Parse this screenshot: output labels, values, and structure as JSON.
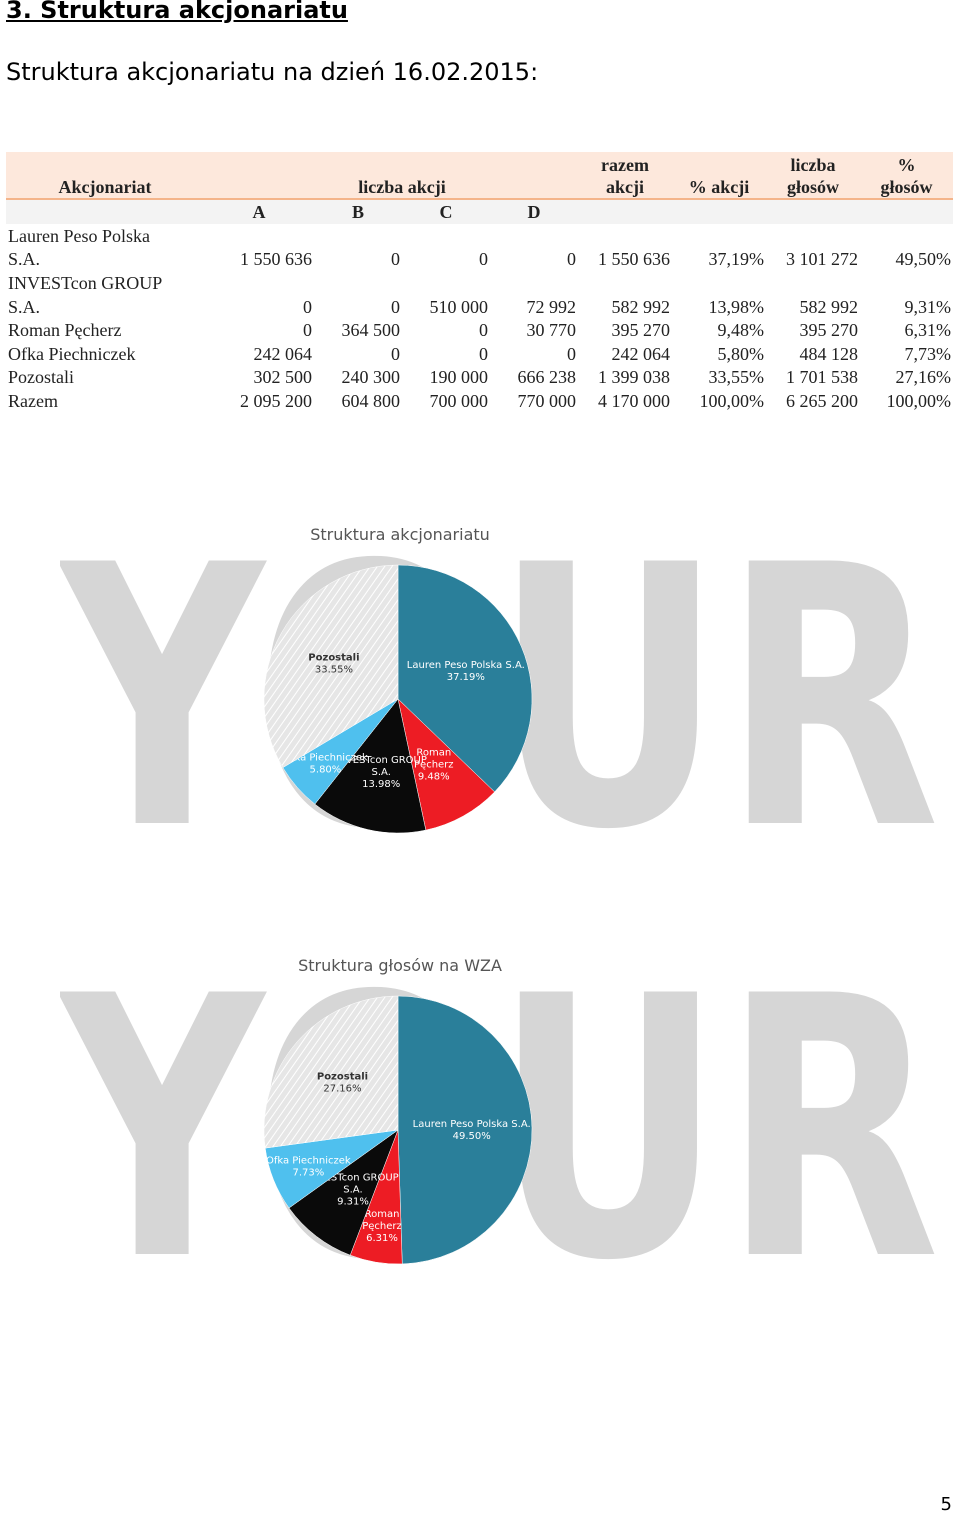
{
  "document": {
    "heading": "3. Struktura akcjonariatu",
    "subheading": "Struktura akcjonariatu na dzień 16.02.2015:",
    "page_number": "5"
  },
  "table": {
    "header": {
      "akcjonariat": "Akcjonariat",
      "liczba_akcji": "liczba akcji",
      "razem_line1": "razem",
      "razem_line2": "akcji",
      "proc_akcji": "% akcji",
      "liczba_glosow_line1": "liczba",
      "liczba_glosow_line2": "głosów",
      "proc_glosow_line1": "%",
      "proc_glosow_line2": "głosów",
      "a": "A",
      "b": "B",
      "c": "C",
      "d": "D"
    },
    "rows": [
      {
        "name1": "Lauren Peso Polska",
        "name2": "S.A.",
        "a": "1 550 636",
        "b": "0",
        "c": "0",
        "d": "0",
        "razem": "1 550 636",
        "proc_akcji": "37,19%",
        "liczba_glosow": "3 101 272",
        "proc_glosow": "49,50%"
      },
      {
        "name1": "INVESTcon GROUP",
        "name2": "S.A.",
        "a": "0",
        "b": "0",
        "c": "510 000",
        "d": "72 992",
        "razem": "582 992",
        "proc_akcji": "13,98%",
        "liczba_glosow": "582 992",
        "proc_glosow": "9,31%"
      },
      {
        "name": "Roman Pęcherz",
        "a": "0",
        "b": "364 500",
        "c": "0",
        "d": "30 770",
        "razem": "395 270",
        "proc_akcji": "9,48%",
        "liczba_glosow": "395 270",
        "proc_glosow": "6,31%"
      },
      {
        "name": "Ofka Piechniczek",
        "a": "242 064",
        "b": "0",
        "c": "0",
        "d": "0",
        "razem": "242 064",
        "proc_akcji": "5,80%",
        "liczba_glosow": "484 128",
        "proc_glosow": "7,73%"
      },
      {
        "name": "Pozostali",
        "a": "302 500",
        "b": "240 300",
        "c": "190 000",
        "d": "666 238",
        "razem": "1 399 038",
        "proc_akcji": "33,55%",
        "liczba_glosow": "1 701 538",
        "proc_glosow": "27,16%"
      },
      {
        "name": "Razem",
        "a": "2 095 200",
        "b": "604 800",
        "c": "700 000",
        "d": "770 000",
        "razem": "4 170 000",
        "proc_akcji": "100,00%",
        "liczba_glosow": "6 265 200",
        "proc_glosow": "100,00%"
      }
    ]
  },
  "watermark": "YOUR",
  "colors": {
    "lauren": "#2a7f9a",
    "roman": "#ed1c24",
    "investcon": "#0a0a0a",
    "ofka": "#4fc0ee",
    "pozostali": "#e6e6e6",
    "table_header_bg": "#fde8dc",
    "table_rule": "#f4b48a",
    "watermark": "#d6d6d6"
  },
  "chart_data": [
    {
      "type": "pie",
      "title": "Struktura akcjonariatu",
      "slices": [
        {
          "label_lines": [
            "Lauren Peso Polska S.A.",
            "37.19%"
          ],
          "value": 37.19,
          "color_key": "lauren",
          "label_color": "#ffffff"
        },
        {
          "label_lines": [
            "Roman",
            "Pęcherz",
            "9.48%"
          ],
          "value": 9.48,
          "color_key": "roman",
          "label_color": "#ffffff"
        },
        {
          "label_lines": [
            "INVESTcon GROUP",
            "S.A.",
            "13.98%"
          ],
          "value": 13.98,
          "color_key": "investcon",
          "label_color": "#ffffff"
        },
        {
          "label_lines": [
            "Ofka Piechniczek",
            "5.80%"
          ],
          "value": 5.8,
          "color_key": "ofka",
          "label_color": "#ffffff"
        },
        {
          "label_lines": [
            "Pozostali",
            "33.55%"
          ],
          "value": 33.55,
          "color_key": "pozostali",
          "label_color": "#333333"
        }
      ]
    },
    {
      "type": "pie",
      "title": "Struktura głosów na WZA",
      "slices": [
        {
          "label_lines": [
            "Lauren Peso Polska S.A.",
            "49.50%"
          ],
          "value": 49.5,
          "color_key": "lauren",
          "label_color": "#ffffff"
        },
        {
          "label_lines": [
            "Roman",
            "Pęcherz",
            "6.31%"
          ],
          "value": 6.31,
          "color_key": "roman",
          "label_color": "#ffffff"
        },
        {
          "label_lines": [
            "INVESTcon GROUP",
            "S.A.",
            "9.31%"
          ],
          "value": 9.31,
          "color_key": "investcon",
          "label_color": "#ffffff"
        },
        {
          "label_lines": [
            "Ofka Piechniczek",
            "7.73%"
          ],
          "value": 7.73,
          "color_key": "ofka",
          "label_color": "#ffffff"
        },
        {
          "label_lines": [
            "Pozostali",
            "27.16%"
          ],
          "value": 27.16,
          "color_key": "pozostali",
          "label_color": "#333333"
        }
      ]
    }
  ]
}
